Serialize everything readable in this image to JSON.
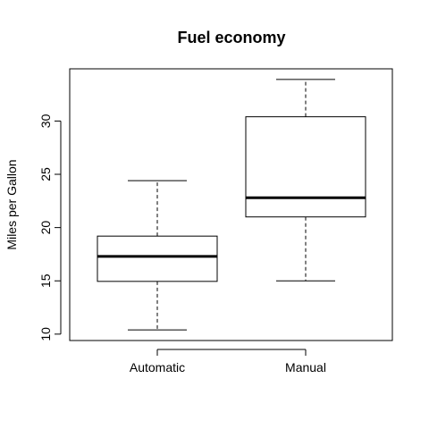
{
  "chart_data": {
    "type": "box",
    "title": "Fuel economy",
    "xlabel": "",
    "ylabel": "Miles per Gallon",
    "categories": [
      "Automatic",
      "Manual"
    ],
    "boxes": [
      {
        "min": 10.4,
        "q1": 14.95,
        "median": 17.3,
        "q3": 19.2,
        "max": 24.4
      },
      {
        "min": 15.0,
        "q1": 21.0,
        "median": 22.8,
        "q3": 30.4,
        "max": 33.9
      }
    ],
    "y_ticks": [
      10,
      15,
      20,
      25,
      30
    ],
    "ylim": [
      9.4,
      34.9
    ],
    "grid": false,
    "legend": "none"
  }
}
